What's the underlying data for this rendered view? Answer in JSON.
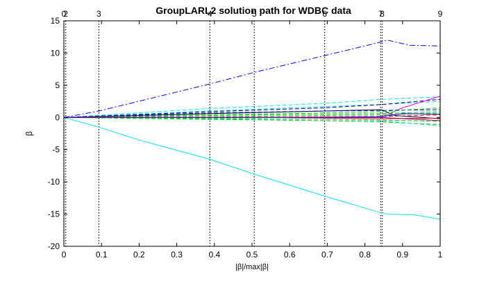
{
  "chart_data": {
    "type": "line",
    "title": "GroupLARL2 solution path for WDBC data",
    "xlabel": "|β|/max|β|",
    "ylabel": "β",
    "xlim": [
      0,
      1
    ],
    "ylim": [
      -20,
      15
    ],
    "x_ticks": [
      0,
      0.1,
      0.2,
      0.3,
      0.4,
      0.5,
      0.6,
      0.7,
      0.8,
      0.9,
      1
    ],
    "x_tick_labels": [
      "0",
      "0.1",
      "0.2",
      "0.3",
      "0.4",
      "0.5",
      "0.6",
      "0.7",
      "0.8",
      "0.9",
      "1"
    ],
    "y_ticks": [
      -20,
      -15,
      -10,
      -5,
      0,
      5,
      10,
      15
    ],
    "y_tick_labels": [
      "-20",
      "-15",
      "-10",
      "-5",
      "0",
      "5",
      "10",
      "15"
    ],
    "grid": false,
    "legend": "none",
    "step_markers": [
      {
        "x": 0.0,
        "label": "0"
      },
      {
        "x": 0.005,
        "label": "2"
      },
      {
        "x": 0.093,
        "label": "3"
      },
      {
        "x": 0.388,
        "label": "4"
      },
      {
        "x": 0.506,
        "label": "5"
      },
      {
        "x": 0.693,
        "label": "6"
      },
      {
        "x": 0.842,
        "label": "7"
      },
      {
        "x": 0.846,
        "label": "8"
      },
      {
        "x": 1.0,
        "label": "9"
      }
    ],
    "series": [
      {
        "color": "#0000ff",
        "dash": "dashdot",
        "x": [
          0,
          0.093,
          0.388,
          0.506,
          0.693,
          0.842,
          0.86,
          0.92,
          1.0
        ],
        "y": [
          0,
          1.0,
          5.2,
          7.0,
          9.6,
          11.7,
          12.0,
          11.2,
          11.1
        ]
      },
      {
        "color": "#00e5ee",
        "dash": "solid",
        "x": [
          0,
          0.093,
          0.2,
          0.388,
          0.506,
          0.693,
          0.842,
          0.86,
          0.93,
          1.0
        ],
        "y": [
          0,
          -1.5,
          -3.5,
          -6.5,
          -8.8,
          -12.2,
          -14.8,
          -15.0,
          -15.1,
          -15.8
        ]
      },
      {
        "color": "#00e5ee",
        "dash": "dashed",
        "x": [
          0,
          0.388,
          0.693,
          0.842,
          1.0
        ],
        "y": [
          0,
          1.4,
          2.2,
          2.8,
          3.2
        ]
      },
      {
        "color": "#00e5ee",
        "dash": "dashed",
        "x": [
          0,
          0.388,
          0.693,
          0.842,
          1.0
        ],
        "y": [
          0,
          1.0,
          1.7,
          2.0,
          2.5
        ]
      },
      {
        "color": "#000080",
        "dash": "dashed",
        "x": [
          0,
          0.388,
          0.693,
          0.842,
          1.0
        ],
        "y": [
          0,
          0.9,
          1.5,
          2.0,
          2.8
        ]
      },
      {
        "color": "#000000",
        "dash": "solid",
        "x": [
          0,
          0.388,
          0.693,
          0.842,
          0.88,
          1.0
        ],
        "y": [
          0,
          0.6,
          1.0,
          1.2,
          0.3,
          -0.2
        ]
      },
      {
        "color": "#ff00ff",
        "dash": "solid",
        "x": [
          0,
          0.842,
          0.9,
          1.0
        ],
        "y": [
          0,
          0.0,
          1.5,
          3.3
        ]
      },
      {
        "color": "#0000ff",
        "dash": "dashed",
        "x": [
          0,
          0.388,
          0.693,
          0.842,
          1.0
        ],
        "y": [
          0,
          0.7,
          1.0,
          1.1,
          1.2
        ]
      },
      {
        "color": "#00cc00",
        "dash": "dashed",
        "x": [
          0,
          0.388,
          0.693,
          0.842,
          1.0
        ],
        "y": [
          0,
          0.4,
          0.7,
          0.9,
          1.5
        ]
      },
      {
        "color": "#00cc00",
        "dash": "dashed",
        "x": [
          0,
          0.388,
          0.693,
          0.842,
          1.0
        ],
        "y": [
          0,
          0.3,
          0.5,
          0.6,
          0.9
        ]
      },
      {
        "color": "#00cc00",
        "dash": "dashed",
        "x": [
          0,
          0.388,
          0.693,
          0.842,
          1.0
        ],
        "y": [
          0,
          0.1,
          0.3,
          0.4,
          0.7
        ]
      },
      {
        "color": "#00cc00",
        "dash": "dashed",
        "x": [
          0,
          0.388,
          0.693,
          0.842,
          1.0
        ],
        "y": [
          0,
          -0.2,
          -0.3,
          -0.4,
          -0.6
        ]
      },
      {
        "color": "#00cc00",
        "dash": "dashed",
        "x": [
          0,
          0.388,
          0.693,
          0.842,
          1.0
        ],
        "y": [
          0,
          -0.3,
          -0.5,
          -0.7,
          -1.1
        ]
      },
      {
        "color": "#ff0000",
        "dash": "dashed",
        "x": [
          0,
          0.506,
          0.693,
          0.842,
          1.0
        ],
        "y": [
          0,
          0.0,
          0.1,
          0.15,
          0.4
        ]
      },
      {
        "color": "#ff0000",
        "dash": "solid",
        "x": [
          0,
          0.506,
          0.693,
          0.842,
          1.0
        ],
        "y": [
          0,
          0.0,
          -0.1,
          -0.2,
          -0.1
        ]
      },
      {
        "color": "#00e5ee",
        "dash": "dashed",
        "x": [
          0,
          0.388,
          0.693,
          0.842,
          1.0
        ],
        "y": [
          0,
          -0.1,
          -0.3,
          -0.5,
          -1.3
        ]
      },
      {
        "color": "#0000ff",
        "dash": "solid",
        "x": [
          0,
          0.506,
          0.842,
          0.9,
          1.0
        ],
        "y": [
          0,
          0.0,
          0.1,
          0.6,
          0.5
        ]
      },
      {
        "color": "#800080",
        "dash": "solid",
        "x": [
          0,
          0.842,
          1.0
        ],
        "y": [
          0,
          0.0,
          -0.5
        ]
      }
    ]
  }
}
